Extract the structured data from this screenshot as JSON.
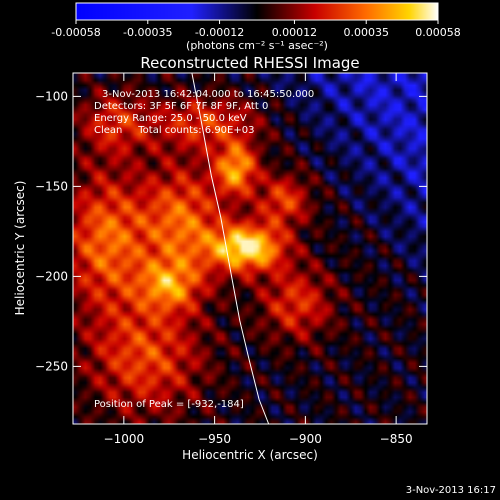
{
  "colorbar": {
    "ticks": [
      "-0.00058",
      "-0.00035",
      "-0.00012",
      "0.00012",
      "0.00035",
      "0.00058"
    ],
    "tick_values": [
      -0.00058,
      -0.00035,
      -0.00012,
      0.00012,
      0.00035,
      0.00058
    ],
    "range": [
      -0.00058,
      0.00058
    ],
    "unit_label": "(photons cm⁻² s⁻¹ asec⁻²)",
    "colormap": "RHESSI blue-black-red-yellow-white",
    "colors": [
      "#0000ff",
      "#000000",
      "#c80000",
      "#ff6a00",
      "#ffd400",
      "#ffffff"
    ]
  },
  "chart_data": {
    "type": "heatmap",
    "title": "Reconstructed RHESSI Image",
    "xlabel": "Heliocentric X (arcsec)",
    "ylabel": "Heliocentric Y (arcsec)",
    "xlim": [
      -1028,
      -833
    ],
    "ylim": [
      -282,
      -87
    ],
    "xticks": [
      -1000,
      -950,
      -900,
      -850
    ],
    "yticks": [
      -100,
      -150,
      -200,
      -250
    ],
    "xtick_labels": [
      "−1000",
      "−950",
      "−900",
      "−850"
    ],
    "ytick_labels": [
      "−100",
      "−150",
      "−200",
      "−250"
    ],
    "peak": [
      -932,
      -184
    ],
    "sources": [
      {
        "x": -932,
        "y": -184,
        "sx": 14,
        "sy": 9,
        "amp": 1.0
      },
      {
        "x": -938,
        "y": -140,
        "sx": 8,
        "sy": 10,
        "amp": 0.75
      },
      {
        "x": -968,
        "y": -170,
        "sx": 16,
        "sy": 22,
        "amp": 0.6
      },
      {
        "x": -1010,
        "y": -180,
        "sx": 16,
        "sy": 26,
        "amp": 0.6
      },
      {
        "x": -988,
        "y": -245,
        "sx": 22,
        "sy": 22,
        "amp": 0.5
      },
      {
        "x": -975,
        "y": -205,
        "sx": 12,
        "sy": 10,
        "amp": 0.55
      },
      {
        "x": -905,
        "y": -215,
        "sx": 14,
        "sy": 14,
        "amp": 0.45
      },
      {
        "x": -912,
        "y": -158,
        "sx": 10,
        "sy": 10,
        "amp": 0.5
      },
      {
        "x": -955,
        "y": -115,
        "sx": 20,
        "sy": 10,
        "amp": 0.45
      },
      {
        "x": -1005,
        "y": -115,
        "sx": 14,
        "sy": 12,
        "amp": 0.4
      }
    ],
    "limb_curve": {
      "x": [
        -962.5,
        -957.2,
        -951.9,
        -946.6,
        -941.3,
        -936.1,
        -930.8,
        -925.5,
        -920.2
      ],
      "y": [
        -87,
        -114.5,
        -143.7,
        -167.3,
        -196.5,
        -224.6,
        -247.1,
        -268.4,
        -282
      ]
    },
    "annotations": [
      "3-Nov-2013 16:42:04.000 to 16:45:50.000",
      "Detectors: 3F 5F 6F 7F 8F 9F, Att 0",
      "Energy Range: 25.0 - 50.0 keV",
      "Clean     Total counts: 6.90E+03",
      "Position of Peak = [-932,-184]"
    ]
  },
  "footer": {
    "timestamp": "3-Nov-2013 16:17"
  }
}
